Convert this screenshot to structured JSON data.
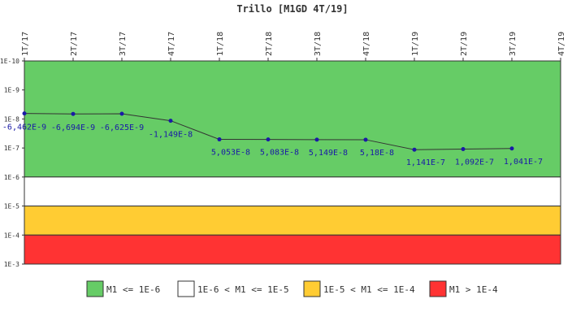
{
  "chart_data": {
    "type": "line",
    "title": "Trillo [M1GD 4T/19]",
    "categories": [
      "1T/17",
      "2T/17",
      "3T/17",
      "4T/17",
      "1T/18",
      "2T/18",
      "3T/18",
      "4T/18",
      "1T/19",
      "2T/19",
      "3T/19",
      "4T/19"
    ],
    "y_scale": "log",
    "y_axis_direction": "inverted",
    "y_ticks": [
      "1E-10",
      "1E-9",
      "1E-8",
      "1E-7",
      "1E-6",
      "1E-5",
      "1E-4",
      "1E-3"
    ],
    "ylim": [
      1e-10,
      0.001
    ],
    "series": [
      {
        "color": "#1a1aa6",
        "values": [
          -6.462e-09,
          -6.694e-09,
          -6.625e-09,
          -1.149e-08,
          5.053e-08,
          5.083e-08,
          5.149e-08,
          5.18e-08,
          1.141e-07,
          1.092e-07,
          1.041e-07,
          null
        ],
        "labels": [
          "-6,462E-9",
          "-6,694E-9",
          "-6,625E-9",
          "-1,149E-8",
          "5,053E-8",
          "5,083E-8",
          "5,149E-8",
          "5,18E-8",
          "1,141E-7",
          "1,092E-7",
          "1,041E-7",
          ""
        ]
      }
    ],
    "bands": [
      {
        "from": 1e-10,
        "to": 1e-06,
        "color": "#66cc66",
        "label": "M1 <= 1E-6"
      },
      {
        "from": 1e-06,
        "to": 1e-05,
        "color": "#ffffff",
        "label": "1E-6 < M1 <= 1E-5"
      },
      {
        "from": 1e-05,
        "to": 0.0001,
        "color": "#ffcc33",
        "label": "1E-5 < M1 <= 1E-4"
      },
      {
        "from": 0.0001,
        "to": 0.001,
        "color": "#ff3333",
        "label": "M1 > 1E-4"
      }
    ],
    "legend_placement": "bottom",
    "grid": false
  }
}
